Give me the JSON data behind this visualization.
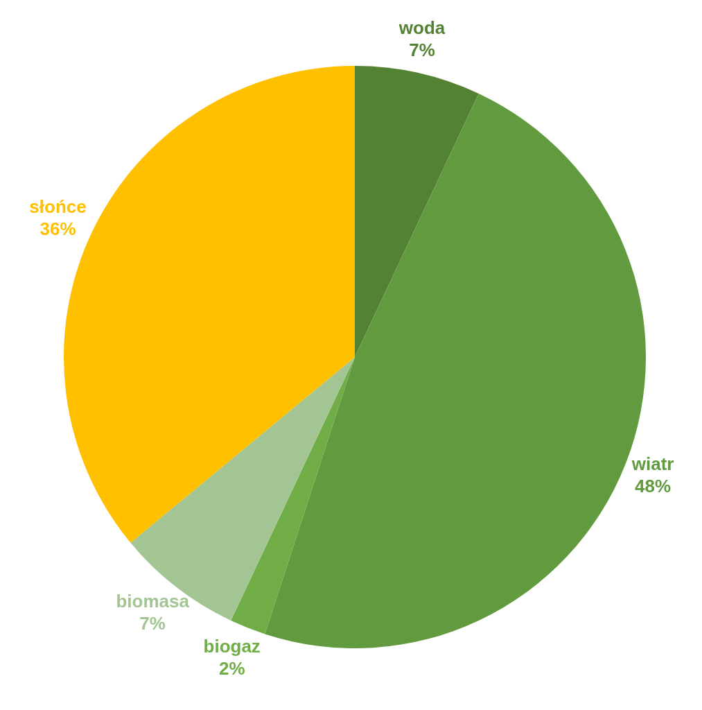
{
  "chart_data": {
    "type": "pie",
    "categories": [
      "woda",
      "wiatr",
      "biogaz",
      "biomasa",
      "słońce"
    ],
    "values": [
      7,
      48,
      2,
      7,
      36
    ],
    "value_labels": [
      "7%",
      "48%",
      "2%",
      "7%",
      "36%"
    ],
    "colors": [
      "#548235",
      "#629a3f",
      "#70ad47",
      "#a3c493",
      "#ffc000"
    ],
    "legend": false
  }
}
